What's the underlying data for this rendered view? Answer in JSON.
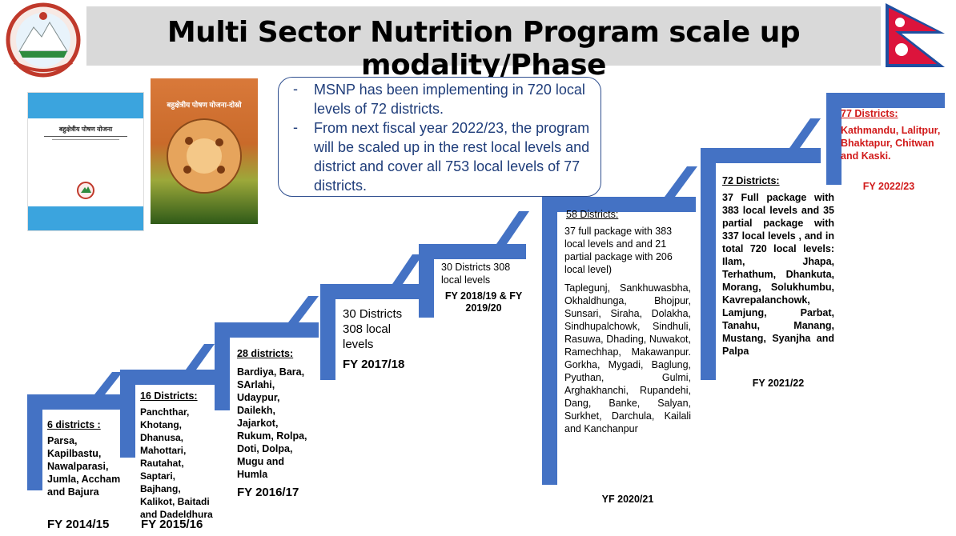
{
  "title": "Multi Sector Nutrition Program scale up modality/Phase",
  "colors": {
    "stair": "#4472c4",
    "title_bg": "#d9d9d9",
    "callout_text": "#1f3d7a",
    "highlight": "#d11a1a"
  },
  "callout": {
    "bullet1": "MSNP has been implementing in 720 local levels of 72 districts.",
    "bullet2": "From next fiscal year 2022/23, the program will be scaled up in the rest local levels and district and cover all 753 local levels of 77 districts."
  },
  "books": {
    "book1_title": "बहुक्षेत्रीय पोषण योजना",
    "book2_title": "बहुक्षेत्रीय पोषण योजना-दोस्रो"
  },
  "steps": [
    {
      "heading": "6 districts :",
      "districts": "Parsa, Kapilbastu, Nawalparasi, Jumla, Accham and Bajura",
      "fy": "FY 2014/15"
    },
    {
      "heading": "16 Districts:",
      "districts": "Panchthar, Khotang, Dhanusa, Mahottari, Rautahat, Saptari, Bajhang, Kalikot, Baitadi and Dadeldhura",
      "fy": "FY 2015/16"
    },
    {
      "heading": "28 districts:",
      "districts": "Bardiya, Bara, SArlahi, Udaypur, Dailekh, Jajarkot, Rukum, Rolpa, Doti, Dolpa, Mugu and Humla",
      "fy": "FY 2016/17"
    },
    {
      "heading": "30 Districts 308 local levels",
      "fy": "FY 2017/18"
    },
    {
      "heading": "30 Districts 308 local levels",
      "fy": "FY 2018/19 & FY 2019/20"
    },
    {
      "heading": "58 Districts:",
      "detail": "37 full package with 383 local levels and and 21 partial package with 206 local level)",
      "districts": "Taplegunj, Sankhuwasbha, Okhaldhunga, Bhojpur, Sunsari, Siraha, Dolakha, Sindhupalchowk, Sindhuli, Rasuwa, Dhading, Nuwakot, Ramechhap, Makawanpur. Gorkha, Mygadi, Baglung, Pyuthan, Gulmi, Arghakhanchi, Rupandehi, Dang, Banke, Salyan, Surkhet, Darchula, Kailali and Kanchanpur",
      "fy": "YF 2020/21"
    },
    {
      "heading": "72 Districts:",
      "districts": "37 Full package with 383 local levels and 35 partial package with 337 local levels , and in total 720 local levels: Ilam, Jhapa, Terhathum, Dhankuta, Morang, Solukhumbu, Kavrepalanchowk, Lamjung, Parbat, Tanahu, Manang, Mustang, Syanjha and Palpa",
      "fy": "FY 2021/22"
    },
    {
      "heading": "77 Districts:",
      "districts": "Kathmandu, Lalitpur, Bhaktapur, Chitwan and Kaski.",
      "fy": "FY 2022/23"
    }
  ]
}
